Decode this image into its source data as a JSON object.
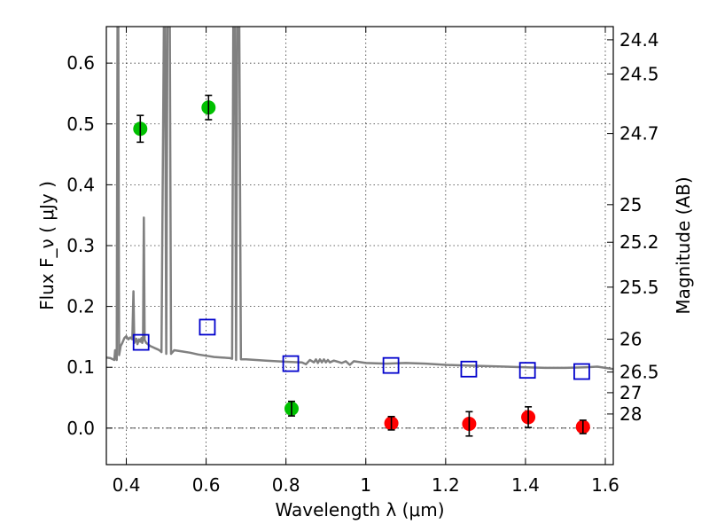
{
  "chart_data": {
    "type": "scatter",
    "xlabel": "Wavelength  λ (μm)",
    "ylabel": "Flux  F_ν  ( μJy )",
    "ylabel_right": "Magnitude (AB)",
    "xlim": [
      0.35,
      1.62
    ],
    "ylim": [
      -0.06,
      0.66
    ],
    "grid": true,
    "x_ticks": [
      0.4,
      0.6,
      0.8,
      1.0,
      1.2,
      1.4,
      1.6
    ],
    "x_tick_labels": [
      "0.4",
      "0.6",
      "0.8",
      "1",
      "1.2",
      "1.4",
      "1.6"
    ],
    "y_ticks": [
      0.0,
      0.1,
      0.2,
      0.3,
      0.4,
      0.5,
      0.6
    ],
    "y_tick_labels": [
      "0.0",
      "0.1",
      "0.2",
      "0.3",
      "0.4",
      "0.5",
      "0.6"
    ],
    "right_ticks": [
      {
        "label": "24.4",
        "flux": 0.6383
      },
      {
        "label": "24.5",
        "flux": 0.5821
      },
      {
        "label": "24.7",
        "flux": 0.4842
      },
      {
        "label": "25",
        "flux": 0.3673
      },
      {
        "label": "25.2",
        "flux": 0.3055
      },
      {
        "label": "25.5",
        "flux": 0.2317
      },
      {
        "label": "26",
        "flux": 0.1462
      },
      {
        "label": "26.5",
        "flux": 0.0922
      },
      {
        "label": "27",
        "flux": 0.0582
      },
      {
        "label": "28",
        "flux": 0.0232
      }
    ],
    "series": [
      {
        "marker": "green-circle",
        "color": "#00c000",
        "points": [
          {
            "x": 0.435,
            "y": 0.492,
            "err": 0.022
          },
          {
            "x": 0.606,
            "y": 0.527,
            "err": 0.02
          },
          {
            "x": 0.814,
            "y": 0.032,
            "err": 0.012
          }
        ]
      },
      {
        "marker": "red-circle",
        "color": "#ff0000",
        "points": [
          {
            "x": 1.064,
            "y": 0.008,
            "err": 0.011
          },
          {
            "x": 1.259,
            "y": 0.007,
            "err": 0.02
          },
          {
            "x": 1.407,
            "y": 0.018,
            "err": 0.017
          },
          {
            "x": 1.544,
            "y": 0.002,
            "err": 0.011
          }
        ]
      },
      {
        "marker": "blue-square",
        "color": "#0000cc",
        "points": [
          {
            "x": 0.437,
            "y": 0.141
          },
          {
            "x": 0.603,
            "y": 0.166
          },
          {
            "x": 0.812,
            "y": 0.106
          },
          {
            "x": 1.063,
            "y": 0.103
          },
          {
            "x": 1.258,
            "y": 0.097
          },
          {
            "x": 1.405,
            "y": 0.095
          },
          {
            "x": 1.541,
            "y": 0.093
          }
        ]
      },
      {
        "marker": "gray-line",
        "color": "#808080",
        "spectrum": [
          [
            0.35,
            0.116
          ],
          [
            0.36,
            0.115
          ],
          [
            0.37,
            0.112
          ],
          [
            0.372,
            0.128
          ],
          [
            0.374,
            0.118
          ],
          [
            0.376,
            0.112
          ],
          [
            0.378,
            0.66
          ],
          [
            0.38,
            0.66
          ],
          [
            0.382,
            0.12
          ],
          [
            0.386,
            0.135
          ],
          [
            0.39,
            0.14
          ],
          [
            0.395,
            0.148
          ],
          [
            0.4,
            0.151
          ],
          [
            0.405,
            0.146
          ],
          [
            0.41,
            0.149
          ],
          [
            0.415,
            0.146
          ],
          [
            0.418,
            0.225
          ],
          [
            0.42,
            0.14
          ],
          [
            0.425,
            0.147
          ],
          [
            0.428,
            0.138
          ],
          [
            0.432,
            0.146
          ],
          [
            0.435,
            0.142
          ],
          [
            0.438,
            0.148
          ],
          [
            0.44,
            0.14
          ],
          [
            0.442,
            0.145
          ],
          [
            0.444,
            0.346
          ],
          [
            0.446,
            0.145
          ],
          [
            0.45,
            0.14
          ],
          [
            0.46,
            0.135
          ],
          [
            0.47,
            0.132
          ],
          [
            0.48,
            0.129
          ],
          [
            0.485,
            0.127
          ],
          [
            0.488,
            0.125
          ],
          [
            0.494,
            0.66
          ],
          [
            0.497,
            0.66
          ],
          [
            0.5,
            0.122
          ],
          [
            0.503,
            0.66
          ],
          [
            0.506,
            0.66
          ],
          [
            0.509,
            0.66
          ],
          [
            0.512,
            0.122
          ],
          [
            0.52,
            0.128
          ],
          [
            0.54,
            0.126
          ],
          [
            0.56,
            0.124
          ],
          [
            0.58,
            0.121
          ],
          [
            0.6,
            0.119
          ],
          [
            0.62,
            0.117
          ],
          [
            0.64,
            0.116
          ],
          [
            0.66,
            0.115
          ],
          [
            0.665,
            0.114
          ],
          [
            0.668,
            0.66
          ],
          [
            0.672,
            0.66
          ],
          [
            0.675,
            0.112
          ],
          [
            0.678,
            0.66
          ],
          [
            0.683,
            0.66
          ],
          [
            0.687,
            0.113
          ],
          [
            0.7,
            0.113
          ],
          [
            0.75,
            0.111
          ],
          [
            0.8,
            0.109
          ],
          [
            0.84,
            0.108
          ],
          [
            0.85,
            0.105
          ],
          [
            0.86,
            0.112
          ],
          [
            0.87,
            0.108
          ],
          [
            0.875,
            0.113
          ],
          [
            0.88,
            0.107
          ],
          [
            0.885,
            0.113
          ],
          [
            0.89,
            0.108
          ],
          [
            0.895,
            0.113
          ],
          [
            0.9,
            0.108
          ],
          [
            0.905,
            0.112
          ],
          [
            0.91,
            0.108
          ],
          [
            0.92,
            0.111
          ],
          [
            0.93,
            0.109
          ],
          [
            0.94,
            0.107
          ],
          [
            0.95,
            0.11
          ],
          [
            0.96,
            0.104
          ],
          [
            0.97,
            0.11
          ],
          [
            1.0,
            0.107
          ],
          [
            1.05,
            0.106
          ],
          [
            1.1,
            0.107
          ],
          [
            1.15,
            0.106
          ],
          [
            1.2,
            0.104
          ],
          [
            1.25,
            0.103
          ],
          [
            1.3,
            0.102
          ],
          [
            1.35,
            0.101
          ],
          [
            1.4,
            0.1
          ],
          [
            1.45,
            0.099
          ],
          [
            1.5,
            0.099
          ],
          [
            1.55,
            0.1
          ],
          [
            1.58,
            0.101
          ],
          [
            1.6,
            0.099
          ],
          [
            1.62,
            0.097
          ]
        ]
      }
    ]
  }
}
